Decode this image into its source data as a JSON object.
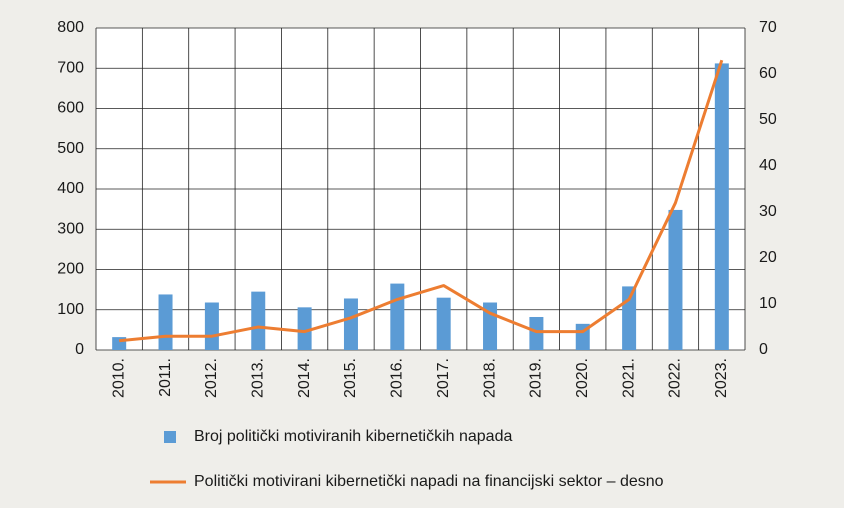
{
  "chart_data": {
    "type": "bar",
    "categories": [
      "2010.",
      "2011.",
      "2012.",
      "2013.",
      "2014.",
      "2015.",
      "2016.",
      "2017.",
      "2018.",
      "2019.",
      "2020.",
      "2021.",
      "2022.",
      "2023."
    ],
    "series": [
      {
        "name": "Broj politički motiviranih kibernetičkih napada",
        "type": "bar",
        "color": "#5b9bd5",
        "values": [
          32,
          138,
          118,
          145,
          106,
          128,
          165,
          130,
          118,
          82,
          65,
          158,
          348,
          712
        ]
      },
      {
        "name": "Politički motivirani kibernetički napadi na financijski sektor – desno",
        "type": "line",
        "axis": "y2",
        "color": "#ed7d31",
        "values": [
          2,
          3,
          3,
          5,
          4,
          7,
          11,
          14,
          8,
          4,
          4,
          11,
          32,
          63
        ]
      }
    ],
    "ylim": [
      0,
      800
    ],
    "yticks": [
      0,
      100,
      200,
      300,
      400,
      500,
      600,
      700,
      800
    ],
    "y2lim": [
      0,
      70
    ],
    "y2ticks": [
      0,
      10,
      20,
      30,
      40,
      50,
      60,
      70
    ],
    "grid": true
  }
}
